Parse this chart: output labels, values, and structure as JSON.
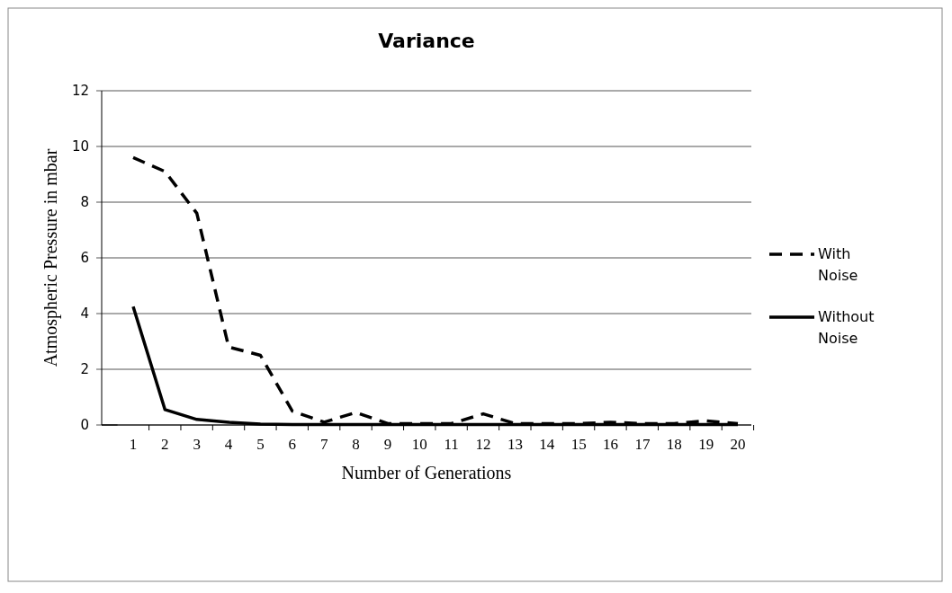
{
  "chart_data": {
    "type": "line",
    "title": "Variance",
    "xlabel": "Number of Generations",
    "ylabel": "Atmospheric Pressure in mbar",
    "categories": [
      "1",
      "2",
      "3",
      "4",
      "5",
      "6",
      "7",
      "8",
      "9",
      "10",
      "11",
      "12",
      "13",
      "14",
      "15",
      "16",
      "17",
      "18",
      "19",
      "20"
    ],
    "series": [
      {
        "name": "With Noise",
        "color": "#000000",
        "line_style": "dashed",
        "values": [
          9.6,
          9.1,
          7.6,
          2.8,
          2.5,
          0.5,
          0.1,
          0.45,
          0.05,
          0.05,
          0.05,
          0.4,
          0.05,
          0.05,
          0.05,
          0.1,
          0.05,
          0.05,
          0.15,
          0.05
        ]
      },
      {
        "name": "Without Noise",
        "color": "#000000",
        "line_style": "solid",
        "values": [
          4.25,
          0.55,
          0.2,
          0.1,
          0.03,
          0.02,
          0.02,
          0.02,
          0.02,
          0.02,
          0.02,
          0.02,
          0.02,
          0.02,
          0.02,
          0.02,
          0.02,
          0.02,
          0.02,
          0.02
        ]
      }
    ],
    "ylim": [
      0,
      12
    ],
    "yticks": [
      0,
      2,
      4,
      6,
      8,
      10,
      12
    ],
    "grid": "y",
    "legend": "right",
    "marker": "none"
  }
}
